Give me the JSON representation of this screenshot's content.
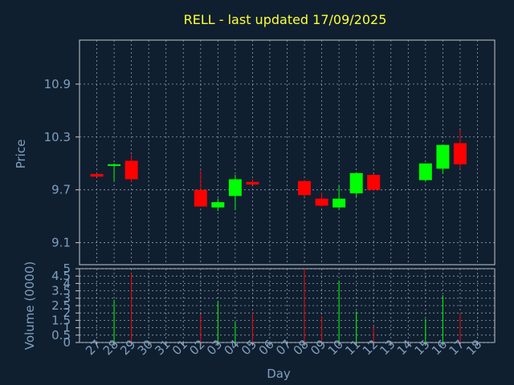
{
  "chart_data": {
    "type": "candlestick",
    "title": "RELL - last updated 17/09/2025",
    "xlabel": "Day",
    "price_ylabel": "Price",
    "volume_ylabel": "Volume (0000)",
    "grid": true,
    "colors": {
      "background": "#0f1f30",
      "axes": "#c8c8c8",
      "grid": "#8fa0b0",
      "up": "#00ff00",
      "down": "#ff0000",
      "title": "#ffff33",
      "label": "#7f9fbf"
    },
    "x_ticks": [
      "27",
      "28",
      "29",
      "30",
      "31",
      "01",
      "02",
      "03",
      "04",
      "05",
      "06",
      "07",
      "08",
      "09",
      "10",
      "11",
      "12",
      "13",
      "14",
      "15",
      "16",
      "17",
      "18"
    ],
    "price_yticks": [
      "9.1",
      "9.7",
      "10.3",
      "10.9"
    ],
    "price_ylim": [
      8.85,
      11.4
    ],
    "volume_yticks": [
      "0",
      "0.5",
      "1",
      "1.5",
      "2",
      "2.5",
      "3",
      "3.5",
      "4",
      "4.5",
      "5"
    ],
    "volume_ylim": [
      0,
      5
    ],
    "candles": [
      {
        "day": "27",
        "open": 9.88,
        "high": 9.89,
        "low": 9.85,
        "close": 9.85,
        "volume": 0.0
      },
      {
        "day": "28",
        "open": 9.98,
        "high": 10.0,
        "low": 9.8,
        "close": 9.99,
        "volume": 2.9
      },
      {
        "day": "29",
        "open": 10.03,
        "high": 10.1,
        "low": 9.79,
        "close": 9.82,
        "volume": 4.7
      },
      {
        "day": "02",
        "open": 9.7,
        "high": 9.92,
        "low": 9.51,
        "close": 9.51,
        "volume": 1.9
      },
      {
        "day": "03",
        "open": 9.5,
        "high": 9.6,
        "low": 9.46,
        "close": 9.56,
        "volume": 2.8
      },
      {
        "day": "04",
        "open": 9.63,
        "high": 9.87,
        "low": 9.47,
        "close": 9.82,
        "volume": 1.4
      },
      {
        "day": "05",
        "open": 9.79,
        "high": 9.82,
        "low": 9.76,
        "close": 9.76,
        "volume": 2.0
      },
      {
        "day": "08",
        "open": 9.8,
        "high": 9.81,
        "low": 9.62,
        "close": 9.64,
        "volume": 5.0
      },
      {
        "day": "09",
        "open": 9.6,
        "high": 9.67,
        "low": 9.51,
        "close": 9.52,
        "volume": 1.8
      },
      {
        "day": "10",
        "open": 9.5,
        "high": 9.75,
        "low": 9.48,
        "close": 9.6,
        "volume": 4.2
      },
      {
        "day": "11",
        "open": 9.66,
        "high": 9.9,
        "low": 9.62,
        "close": 9.89,
        "volume": 2.1
      },
      {
        "day": "12",
        "open": 9.87,
        "high": 9.88,
        "low": 9.69,
        "close": 9.7,
        "volume": 1.1
      },
      {
        "day": "15",
        "open": 9.81,
        "high": 10.0,
        "low": 9.8,
        "close": 10.0,
        "volume": 1.6
      },
      {
        "day": "16",
        "open": 9.94,
        "high": 10.21,
        "low": 9.88,
        "close": 10.21,
        "volume": 3.2
      },
      {
        "day": "17",
        "open": 10.23,
        "high": 10.38,
        "low": 9.94,
        "close": 9.99,
        "volume": 2.0
      }
    ]
  }
}
